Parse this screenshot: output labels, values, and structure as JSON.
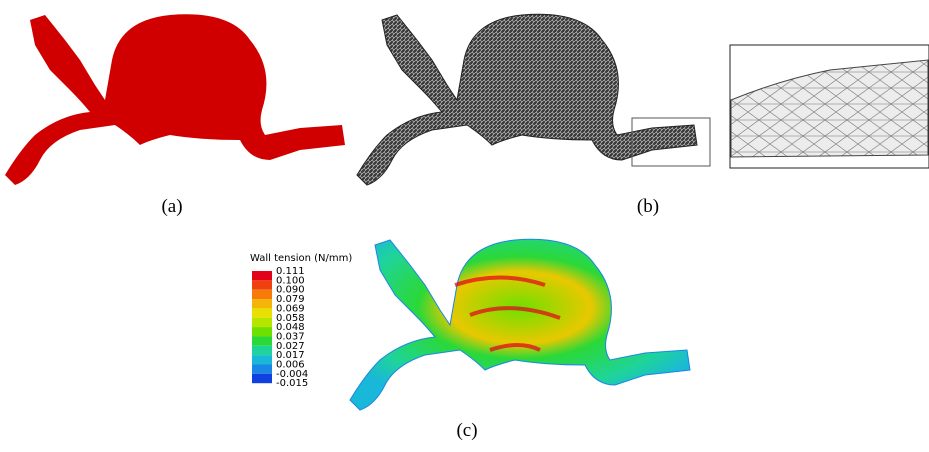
{
  "panels": {
    "a": {
      "label": "(a)"
    },
    "b": {
      "label": "(b)"
    },
    "c": {
      "label": "(c)"
    }
  },
  "legend": {
    "title": "Wall tension (N/mm)",
    "labels": [
      "0.111",
      "0.100",
      "0.090",
      "0.079",
      "0.069",
      "0.058",
      "0.048",
      "0.037",
      "0.027",
      "0.017",
      "0.006",
      "-0.004",
      "-0.015"
    ],
    "colors": [
      "#e3001b",
      "#f0400f",
      "#f77a0a",
      "#f5b40a",
      "#e8e000",
      "#b4e600",
      "#6ee000",
      "#2ad838",
      "#1fd49a",
      "#1ab8d8",
      "#1a86e6",
      "#1040e0"
    ]
  }
}
